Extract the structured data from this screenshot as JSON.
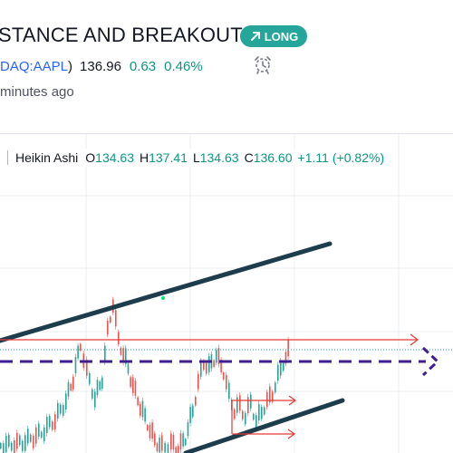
{
  "idea": {
    "title": "STANCE AND BREAKOUT",
    "badge_label": "LONG",
    "symbol": "DAQ:AAPL",
    "symbol_close": ")",
    "price": "136.96",
    "change": "0.63",
    "change_pct": "0.46%",
    "time_ago": "minutes ago"
  },
  "legend": {
    "chart_type": "Heikin Ashi",
    "o_key": "O",
    "o_val": "134.63",
    "h_key": "H",
    "h_val": "137.41",
    "l_key": "L",
    "l_val": "134.63",
    "c_key": "C",
    "c_val": "136.60",
    "change": "+1.11",
    "change_pct": "(+0.82%)"
  },
  "colors": {
    "accent": "#26a69a",
    "up": "#089981",
    "candle_up": "#26a69a",
    "candle_down": "#ef5350",
    "trendline": "#1e3d4c",
    "dashed_level": "#3f1f8f",
    "resistance": "#e53935"
  },
  "icons": {
    "badge": "arrow-up-right-icon",
    "alarm": "alarm-clock-icon"
  }
}
